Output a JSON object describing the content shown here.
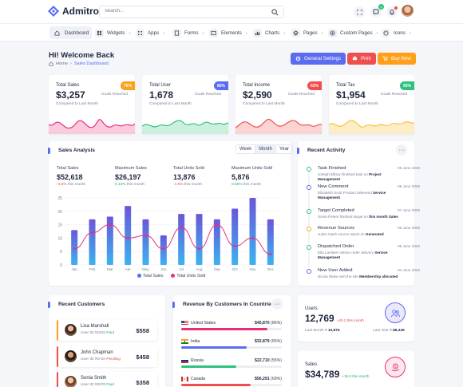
{
  "app": {
    "name": "Admitro"
  },
  "search": {
    "placeholder": "Search..."
  },
  "topbar": {
    "notif_count": "4",
    "msg_count": ""
  },
  "nav": [
    {
      "label": "Dashboard"
    },
    {
      "label": "Widgets"
    },
    {
      "label": "Apps"
    },
    {
      "label": "Forms"
    },
    {
      "label": "Elements"
    },
    {
      "label": "Charts"
    },
    {
      "label": "Pages"
    },
    {
      "label": "Custom Pages"
    },
    {
      "label": "Icons"
    }
  ],
  "header": {
    "title": "Hi! Welcome Back",
    "crumb_home": "Home",
    "crumb_current": "Sales Dashboard",
    "btn_settings": "General Settings",
    "btn_print": "Print",
    "btn_buy": "Buy Now"
  },
  "colors": {
    "primary": "#5b6cf1",
    "pink": "#ea2f7a",
    "green": "#2ec27e",
    "red": "#f04f4f",
    "yellow": "#f5c542",
    "orange": "#ff9f1a"
  },
  "stats": [
    {
      "label": "Total Sales",
      "value": "$3,257",
      "pill": "76%",
      "sub": "Compared to Last Month",
      "goal": "Goals Reached"
    },
    {
      "label": "Total User",
      "value": "1,678",
      "pill": "85%",
      "sub": "Compared to Last Month",
      "goal": "Goals Reached"
    },
    {
      "label": "Total Income",
      "value": "$2,590",
      "pill": "62%",
      "sub": "Compared to Last Month",
      "goal": "Goals Reached"
    },
    {
      "label": "Total Tax",
      "value": "$1,954",
      "pill": "93%",
      "sub": "Compared to Last Month",
      "goal": "Goals Reached"
    }
  ],
  "sales": {
    "title": "Sales Analysis",
    "tabs": [
      "Week",
      "Month",
      "Year"
    ],
    "kpis": [
      {
        "label": "Total Sales",
        "value": "$52,618",
        "change": "-4.5%",
        "trend": "down",
        "note": "this month"
      },
      {
        "label": "Maximum Sales",
        "value": "$26,197",
        "change": "0.13%",
        "trend": "up",
        "note": "this month"
      },
      {
        "label": "Total Units Sold",
        "value": "13,876",
        "change": "-4.5%",
        "trend": "down",
        "note": "this month"
      },
      {
        "label": "Maximum Units Sold",
        "value": "5,876",
        "change": "0.56%",
        "trend": "up",
        "note": "this month"
      }
    ],
    "legend": [
      "Total Sales",
      "Total Units Sold"
    ]
  },
  "chart_data": {
    "type": "bar",
    "categories": [
      "Jan",
      "Feb",
      "Mar",
      "Apr",
      "May",
      "Jun",
      "Jul",
      "Aug",
      "Sep",
      "Oct",
      "Nov",
      "Dec"
    ],
    "series": [
      {
        "name": "Total Sales",
        "type": "bar",
        "values": [
          13,
          17,
          18,
          22,
          17,
          11,
          19,
          19,
          17,
          21,
          25,
          17
        ]
      },
      {
        "name": "Total Units Sold",
        "type": "line",
        "values": [
          6,
          12,
          15,
          10,
          11,
          6,
          14,
          6,
          15,
          7,
          10,
          4
        ]
      }
    ],
    "ylim": [
      0,
      25
    ],
    "yticks": [
      0,
      5,
      10,
      15,
      20,
      25
    ],
    "grid": true,
    "legend": "bottom"
  },
  "activity": {
    "title": "Recent Activity",
    "items": [
      {
        "title": "Task Finished",
        "desc_a": "Joseph Ellison finished task on",
        "desc_b": "Project Management",
        "date": "09 June 2020",
        "color": "#2ec27e"
      },
      {
        "title": "New Comment",
        "desc_a": "Elizabeth Scott Product delivered",
        "desc_b": "Service Management",
        "date": "08 June 2020",
        "color": "#5b6cf1"
      },
      {
        "title": "Target Completed",
        "desc_a": "Sonia Peters finished target on",
        "desc_b": "this month Sales",
        "date": "07 June 2020",
        "color": "#2ec27e"
      },
      {
        "title": "Revenue Sources",
        "desc_a": "Justin Nash source report on",
        "desc_b": "Generated",
        "date": "06 June 2020",
        "color": "#ff9f1a"
      },
      {
        "title": "Dispatched Order",
        "desc_a": "Ella Lambert ontime order delivery",
        "desc_b": "Service Management",
        "date": "05 June 2020",
        "color": "#2ec27e"
      },
      {
        "title": "New User Added",
        "desc_a": "Nicola Blake visit the site",
        "desc_b": "Membership allocated",
        "date": "04 June 2020",
        "color": "#5b6cf1"
      }
    ]
  },
  "customers": {
    "title": "Recent Customers",
    "items": [
      {
        "name": "Lisa Marshall",
        "uid": "User ID:#2342",
        "status": "Paid",
        "amount": "$558",
        "accent": "#ff9f1a"
      },
      {
        "name": "John Chapman",
        "uid": "User ID:#6720",
        "status": "Pending",
        "amount": "$458",
        "accent": "#f04f4f"
      },
      {
        "name": "Sonia Smith",
        "uid": "User ID:#8376",
        "status": "Paid",
        "amount": "$358",
        "accent": "#f04f4f"
      }
    ]
  },
  "revenue": {
    "title": "Revenue By Customers In Countries",
    "items": [
      {
        "country": "United States",
        "value": "$45,870",
        "pct": "(86%)",
        "fraction": 0.86,
        "color": "#ea2f7a"
      },
      {
        "country": "India",
        "value": "$32,879",
        "pct": "(65%)",
        "fraction": 0.65,
        "color": "#5b6cf1"
      },
      {
        "country": "Russia",
        "value": "$22,710",
        "pct": "(55%)",
        "fraction": 0.55,
        "color": "#2ec27e"
      },
      {
        "country": "Canada",
        "value": "$56,291",
        "pct": "(69%)",
        "fraction": 0.69,
        "color": "#f04f4f"
      }
    ]
  },
  "users_card": {
    "label": "Users",
    "value": "12,769",
    "delta": "+40.2 this month",
    "last_month_label": "Last Month",
    "last_month_value": "10,876",
    "last_year_label": "Last Year",
    "last_year_value": "88,345"
  },
  "sales_card": {
    "label": "Sales",
    "value": "$34,789",
    "delta": "+19.6 this month"
  }
}
